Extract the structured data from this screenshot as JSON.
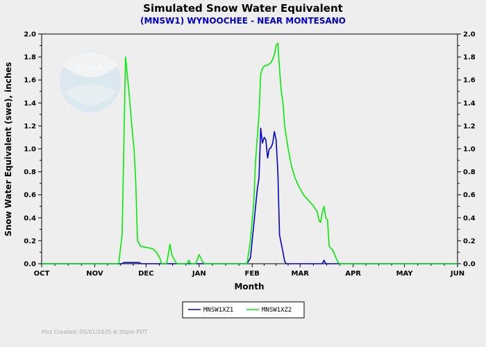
{
  "footer": "Plot Created: 05/01/2025 6:30pm PDT",
  "colors": {
    "MNSW1XZ1": "#0000cc",
    "MNSW1XZ2": "#00ee00"
  },
  "chart_data": {
    "type": "line",
    "title": "Simulated Snow Water Equivalent",
    "subtitle": "(MNSW1) WYNOOCHEE - NEAR MONTESANO",
    "xlabel": "Month",
    "ylabel": "Snow Water Equivalent (swe),  inches",
    "xlim": [
      "2024-10-01",
      "2025-06-01"
    ],
    "ylim": [
      0,
      2.0
    ],
    "x_ticks": [
      "OCT",
      "NOV",
      "DEC",
      "JAN",
      "FEB",
      "MAR",
      "APR",
      "MAY",
      "JUN"
    ],
    "y_ticks": [
      "0.0",
      "0.2",
      "0.4",
      "0.6",
      "0.8",
      "1.0",
      "1.2",
      "1.4",
      "1.6",
      "1.8",
      "2.0"
    ],
    "y_ticks_right": [
      "0.0",
      "0.2",
      "0.4",
      "0.6",
      "0.8",
      "1.0",
      "1.2",
      "1.4",
      "1.6",
      "1.8",
      "2.0"
    ],
    "grid": false,
    "legend_position": "bottom",
    "series": [
      {
        "name": "MNSW1XZ1",
        "color": "#0000cc",
        "points": [
          [
            "2024-10-01",
            0
          ],
          [
            "2024-11-17",
            0
          ],
          [
            "2024-11-18",
            0.01
          ],
          [
            "2024-11-27",
            0.01
          ],
          [
            "2024-11-28",
            0
          ],
          [
            "2025-01-29",
            0
          ],
          [
            "2025-01-31",
            0.05
          ],
          [
            "2025-02-02",
            0.35
          ],
          [
            "2025-02-04",
            0.65
          ],
          [
            "2025-02-05",
            0.75
          ],
          [
            "2025-02-06",
            1.18
          ],
          [
            "2025-02-07",
            1.05
          ],
          [
            "2025-02-08",
            1.1
          ],
          [
            "2025-02-09",
            1.08
          ],
          [
            "2025-02-10",
            0.92
          ],
          [
            "2025-02-11",
            1.0
          ],
          [
            "2025-02-12",
            1.01
          ],
          [
            "2025-02-13",
            1.05
          ],
          [
            "2025-02-14",
            1.15
          ],
          [
            "2025-02-15",
            1.08
          ],
          [
            "2025-02-16",
            0.8
          ],
          [
            "2025-02-17",
            0.25
          ],
          [
            "2025-02-19",
            0.1
          ],
          [
            "2025-02-20",
            0.02
          ],
          [
            "2025-02-21",
            0
          ],
          [
            "2025-03-14",
            0
          ],
          [
            "2025-03-15",
            0.03
          ],
          [
            "2025-03-16",
            0
          ],
          [
            "2025-06-01",
            0
          ]
        ]
      },
      {
        "name": "MNSW1XZ2",
        "color": "#00ee00",
        "points": [
          [
            "2024-10-01",
            0
          ],
          [
            "2024-11-15",
            0
          ],
          [
            "2024-11-17",
            0.25
          ],
          [
            "2024-11-19",
            1.8
          ],
          [
            "2024-11-21",
            1.5
          ],
          [
            "2024-11-23",
            1.15
          ],
          [
            "2024-11-24",
            1.0
          ],
          [
            "2024-11-25",
            0.7
          ],
          [
            "2024-11-26",
            0.2
          ],
          [
            "2024-11-28",
            0.15
          ],
          [
            "2024-12-02",
            0.14
          ],
          [
            "2024-12-05",
            0.13
          ],
          [
            "2024-12-07",
            0.1
          ],
          [
            "2024-12-09",
            0.05
          ],
          [
            "2024-12-10",
            0
          ],
          [
            "2024-12-13",
            0
          ],
          [
            "2024-12-15",
            0.17
          ],
          [
            "2024-12-16",
            0.08
          ],
          [
            "2024-12-18",
            0.02
          ],
          [
            "2024-12-19",
            0
          ],
          [
            "2024-12-25",
            0
          ],
          [
            "2024-12-26",
            0.03
          ],
          [
            "2024-12-27",
            0
          ],
          [
            "2024-12-30",
            0
          ],
          [
            "2025-01-01",
            0.08
          ],
          [
            "2025-01-03",
            0.02
          ],
          [
            "2025-01-04",
            0
          ],
          [
            "2025-01-29",
            0
          ],
          [
            "2025-01-31",
            0.2
          ],
          [
            "2025-02-02",
            0.55
          ],
          [
            "2025-02-03",
            0.9
          ],
          [
            "2025-02-05",
            1.3
          ],
          [
            "2025-02-06",
            1.65
          ],
          [
            "2025-02-07",
            1.7
          ],
          [
            "2025-02-08",
            1.72
          ],
          [
            "2025-02-10",
            1.73
          ],
          [
            "2025-02-12",
            1.75
          ],
          [
            "2025-02-13",
            1.78
          ],
          [
            "2025-02-14",
            1.82
          ],
          [
            "2025-02-15",
            1.9
          ],
          [
            "2025-02-16",
            1.92
          ],
          [
            "2025-02-17",
            1.7
          ],
          [
            "2025-02-18",
            1.5
          ],
          [
            "2025-02-19",
            1.4
          ],
          [
            "2025-02-20",
            1.2
          ],
          [
            "2025-02-22",
            1.0
          ],
          [
            "2025-02-24",
            0.85
          ],
          [
            "2025-02-26",
            0.75
          ],
          [
            "2025-02-28",
            0.68
          ],
          [
            "2025-03-03",
            0.6
          ],
          [
            "2025-03-06",
            0.55
          ],
          [
            "2025-03-09",
            0.5
          ],
          [
            "2025-03-11",
            0.45
          ],
          [
            "2025-03-12",
            0.38
          ],
          [
            "2025-03-13",
            0.36
          ],
          [
            "2025-03-14",
            0.45
          ],
          [
            "2025-03-15",
            0.5
          ],
          [
            "2025-03-16",
            0.4
          ],
          [
            "2025-03-17",
            0.38
          ],
          [
            "2025-03-18",
            0.15
          ],
          [
            "2025-03-20",
            0.12
          ],
          [
            "2025-03-22",
            0.05
          ],
          [
            "2025-03-23",
            0.02
          ],
          [
            "2025-03-24",
            0
          ],
          [
            "2025-06-01",
            0
          ]
        ]
      }
    ]
  }
}
